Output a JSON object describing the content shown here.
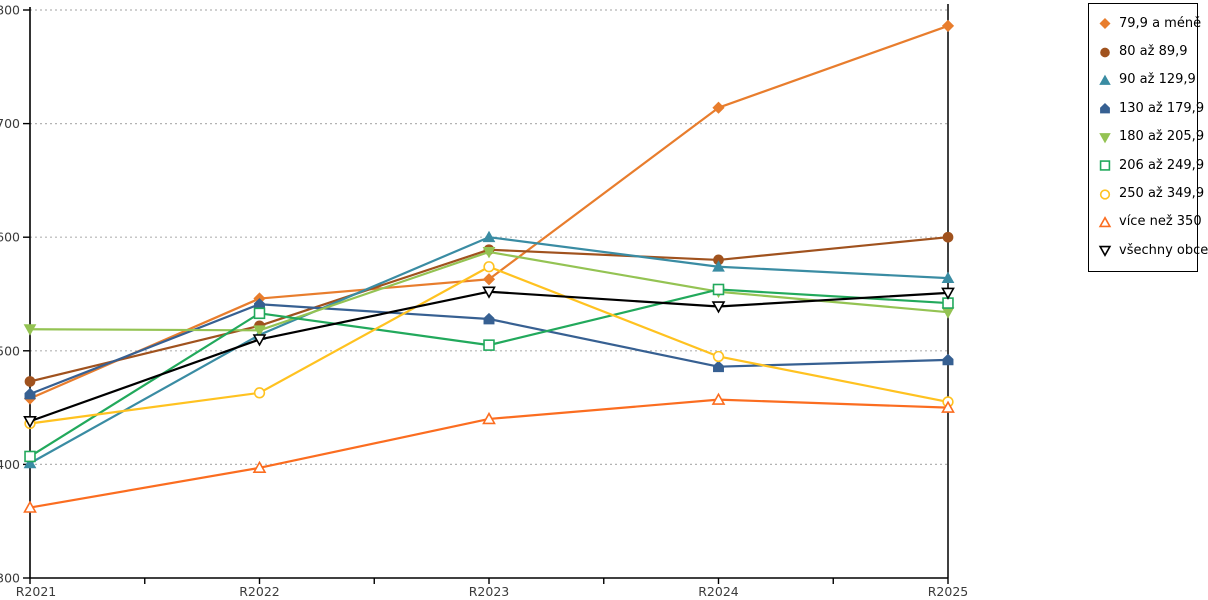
{
  "chart_data": {
    "type": "line",
    "title": "",
    "x_categories": [
      "R2021",
      "R2022",
      "R2023",
      "R2024",
      "R2025"
    ],
    "y_axis": {
      "min": 300,
      "max": 800,
      "step": 100,
      "grid": "dotted-horizontal"
    },
    "legend_position": "top-right",
    "styles": {
      "gridline_color": "#b3b3b3",
      "axis_color": "#000000",
      "label_color": "#3b3b3b"
    },
    "series": [
      {
        "name": "79,9 a méně",
        "color": "#e87d2d",
        "marker": "diamond",
        "fill": "solid",
        "values": [
          458,
          546,
          563,
          714,
          786
        ]
      },
      {
        "name": "80 až 89,9",
        "color": "#a0521e",
        "marker": "circle",
        "fill": "solid",
        "values": [
          473,
          522,
          589,
          580,
          600
        ]
      },
      {
        "name": "90 až 129,9",
        "color": "#3a8ca3",
        "marker": "triangle-up",
        "fill": "solid",
        "values": [
          401,
          514,
          600,
          574,
          564
        ]
      },
      {
        "name": "130 až 179,9",
        "color": "#376092",
        "marker": "pentagon",
        "fill": "solid",
        "values": [
          462,
          541,
          528,
          486,
          492
        ]
      },
      {
        "name": "180 až 205,9",
        "color": "#94c353",
        "marker": "triangle-down",
        "fill": "solid",
        "values": [
          519,
          518,
          587,
          552,
          534
        ]
      },
      {
        "name": "206 až 249,9",
        "color": "#22a95c",
        "marker": "square",
        "fill": "open",
        "values": [
          407,
          533,
          505,
          554,
          542
        ]
      },
      {
        "name": "250 až 349,9",
        "color": "#ffc220",
        "marker": "circle",
        "fill": "open",
        "values": [
          436,
          463,
          574,
          495,
          455
        ]
      },
      {
        "name": "více než 350",
        "color": "#fb6d20",
        "marker": "triangle-up",
        "fill": "open",
        "values": [
          362,
          397,
          440,
          457,
          450
        ]
      },
      {
        "name": "všechny obce",
        "color": "#000000",
        "marker": "triangle-down",
        "fill": "open",
        "values": [
          438,
          510,
          552,
          539,
          551
        ]
      }
    ]
  }
}
